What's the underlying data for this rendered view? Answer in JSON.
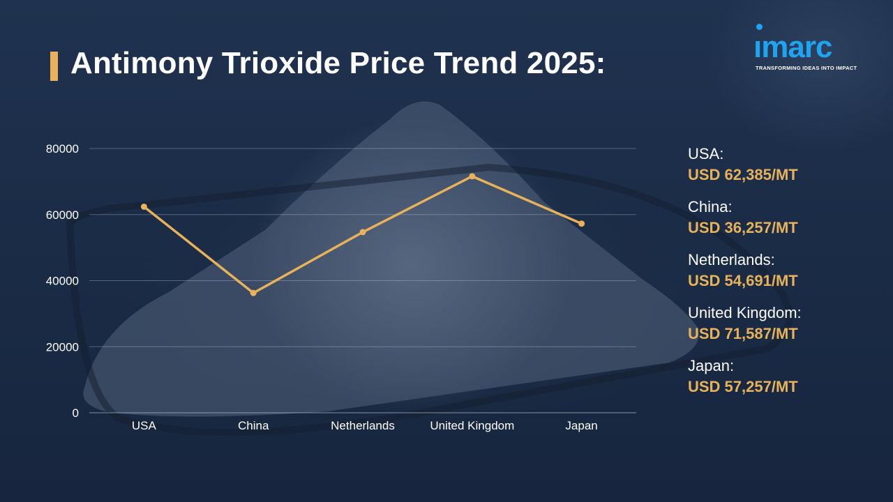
{
  "title": "Antimony Trioxide Price Trend 2025:",
  "logo": {
    "word": "ımarc",
    "tagline": "TRANSFORMING IDEAS INTO IMPACT"
  },
  "colors": {
    "accent": "#e8b25a",
    "brand": "#1ea4f0",
    "background": "#1b2c47"
  },
  "chart_data": {
    "type": "line",
    "categories": [
      "USA",
      "China",
      "Netherlands",
      "United Kingdom",
      "Japan"
    ],
    "series": [
      {
        "values": [
          62385,
          36257,
          54691,
          71587,
          57257
        ]
      }
    ],
    "yticks": [
      "80000",
      "60000",
      "40000",
      "20000",
      "0"
    ],
    "ylim": [
      0,
      80000
    ],
    "grid": true
  },
  "legend": [
    {
      "country": "USA:",
      "price": "USD 62,385/MT"
    },
    {
      "country": "China:",
      "price": "USD 36,257/MT"
    },
    {
      "country": "Netherlands:",
      "price": "USD 54,691/MT"
    },
    {
      "country": "United Kingdom:",
      "price": "USD 71,587/MT"
    },
    {
      "country": "Japan:",
      "price": "USD 57,257/MT"
    }
  ]
}
